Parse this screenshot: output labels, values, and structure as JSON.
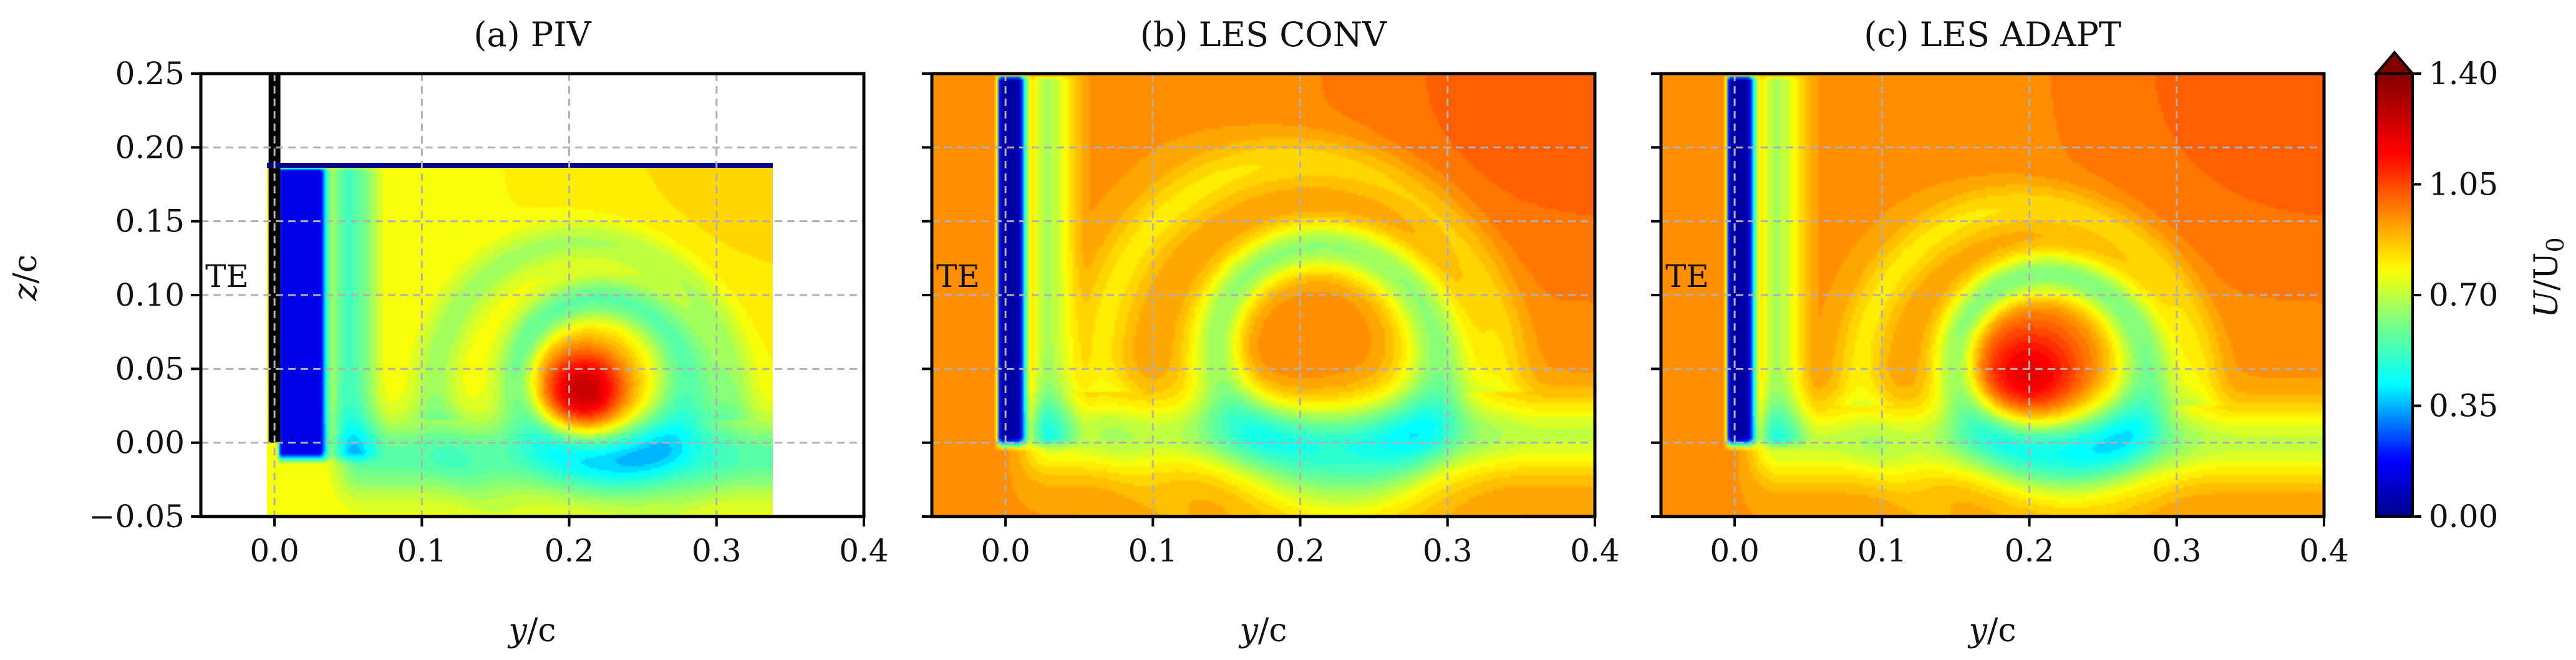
{
  "chart_data": {
    "type": "heatmap",
    "colorbar": {
      "label_var": "U",
      "label_sep": "/U",
      "label_sub": "0",
      "ticks": [
        0.0,
        0.35,
        0.7,
        1.05,
        1.4
      ],
      "tick_labels": [
        "0.00",
        "0.35",
        "0.70",
        "1.05",
        "1.40"
      ],
      "range": [
        0.0,
        1.4
      ],
      "extend": "max",
      "stops": [
        {
          "v": 0.0,
          "c": "#00008f"
        },
        {
          "v": 0.18,
          "c": "#0000ff"
        },
        {
          "v": 0.42,
          "c": "#00ffff"
        },
        {
          "v": 0.62,
          "c": "#7fff7f"
        },
        {
          "v": 0.78,
          "c": "#ffff00"
        },
        {
          "v": 0.95,
          "c": "#ff8c00"
        },
        {
          "v": 1.15,
          "c": "#ff0000"
        },
        {
          "v": 1.4,
          "c": "#7f0000"
        }
      ]
    },
    "shared_y_label_var": "z",
    "shared_y_label_rest": "/c",
    "x_label_var": "y",
    "x_label_rest": "/c",
    "ylim": [
      -0.05,
      0.25
    ],
    "xlim": [
      -0.05,
      0.4
    ],
    "y_ticks": [
      -0.05,
      0.0,
      0.05,
      0.1,
      0.15,
      0.2,
      0.25
    ],
    "y_tick_labels": [
      "−0.05",
      "0.00",
      "0.05",
      "0.10",
      "0.15",
      "0.20",
      "0.25"
    ],
    "x_ticks": [
      0.0,
      0.1,
      0.2,
      0.3,
      0.4
    ],
    "x_tick_labels": [
      "0.0",
      "0.1",
      "0.2",
      "0.3",
      "0.4"
    ],
    "grid": "dashed",
    "panels": [
      {
        "title": "(a) PIV",
        "annotation": "TE",
        "annotation_pos": [
          -0.047,
          0.113
        ],
        "free_stream": 0.78,
        "measurement_window": {
          "y": [
            -0.005,
            0.338
          ],
          "z": [
            -0.05,
            0.188
          ]
        },
        "wake": {
          "y0": 0.005,
          "y1": 0.03,
          "z_top": 0.188,
          "z_bot": -0.01,
          "min": 0.15
        },
        "vortex": {
          "y": 0.21,
          "z": 0.035,
          "radius": 0.075,
          "core_peak": 1.28,
          "ring_min": 0.55
        },
        "sheet": {
          "y0": 0.03,
          "y1": 0.36,
          "z": -0.01
        }
      },
      {
        "title": "(b) LES CONV",
        "annotation": "TE",
        "annotation_pos": [
          -0.047,
          0.113
        ],
        "free_stream": 0.93,
        "measurement_window": {
          "y": [
            -0.05,
            0.4
          ],
          "z": [
            -0.05,
            0.25
          ]
        },
        "wake": {
          "y0": -0.003,
          "y1": 0.008,
          "z_top": 0.25,
          "z_bot": 0.0,
          "min": 0.05
        },
        "vortex": {
          "y": 0.2,
          "z": 0.055,
          "radius": 0.1,
          "core_peak": 0.95,
          "ring_min": 0.62
        },
        "sheet": {
          "y0": 0.0,
          "y1": 0.4,
          "z": 0.005
        }
      },
      {
        "title": "(c) LES ADAPT",
        "annotation": "TE",
        "annotation_pos": [
          -0.047,
          0.113
        ],
        "free_stream": 0.93,
        "measurement_window": {
          "y": [
            -0.05,
            0.4
          ],
          "z": [
            -0.05,
            0.25
          ]
        },
        "wake": {
          "y0": -0.003,
          "y1": 0.008,
          "z_top": 0.25,
          "z_bot": 0.0,
          "min": 0.05
        },
        "vortex": {
          "y": 0.2,
          "z": 0.045,
          "radius": 0.085,
          "core_peak": 1.2,
          "ring_min": 0.6
        },
        "sheet": {
          "y0": 0.0,
          "y1": 0.4,
          "z": 0.0
        }
      }
    ]
  }
}
